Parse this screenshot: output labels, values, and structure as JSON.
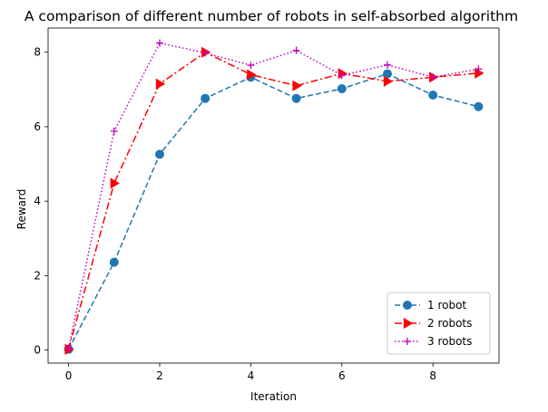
{
  "chart_data": {
    "type": "line",
    "title": "A comparison of different number of robots in self-absorbed algorithm",
    "xlabel": "Iteration",
    "ylabel": "Reward",
    "xlim": [
      -0.45,
      9.45
    ],
    "ylim": [
      -0.35,
      8.65
    ],
    "x": [
      0,
      1,
      2,
      3,
      4,
      5,
      6,
      7,
      8,
      9
    ],
    "xticks": [
      0,
      2,
      4,
      6,
      8
    ],
    "yticks": [
      0,
      2,
      4,
      6,
      8
    ],
    "grid": false,
    "legend_position": "lower-right",
    "series": [
      {
        "name": "1 robot",
        "color": "#1f77b4",
        "line_style": "dashed",
        "marker": "circle",
        "values": [
          0.02,
          2.36,
          5.26,
          6.76,
          7.33,
          6.76,
          7.02,
          7.42,
          6.85,
          6.54
        ]
      },
      {
        "name": "2 robots",
        "color": "#ff0000",
        "line_style": "dash-dot",
        "marker": "triangle-right",
        "values": [
          0.02,
          4.48,
          7.15,
          8.0,
          7.4,
          7.1,
          7.43,
          7.22,
          7.33,
          7.44
        ]
      },
      {
        "name": "3 robots",
        "color": "#bf00bf",
        "line_style": "dotted",
        "marker": "plus",
        "values": [
          0.05,
          5.88,
          8.25,
          7.98,
          7.65,
          8.05,
          7.38,
          7.66,
          7.33,
          7.55
        ]
      }
    ]
  }
}
